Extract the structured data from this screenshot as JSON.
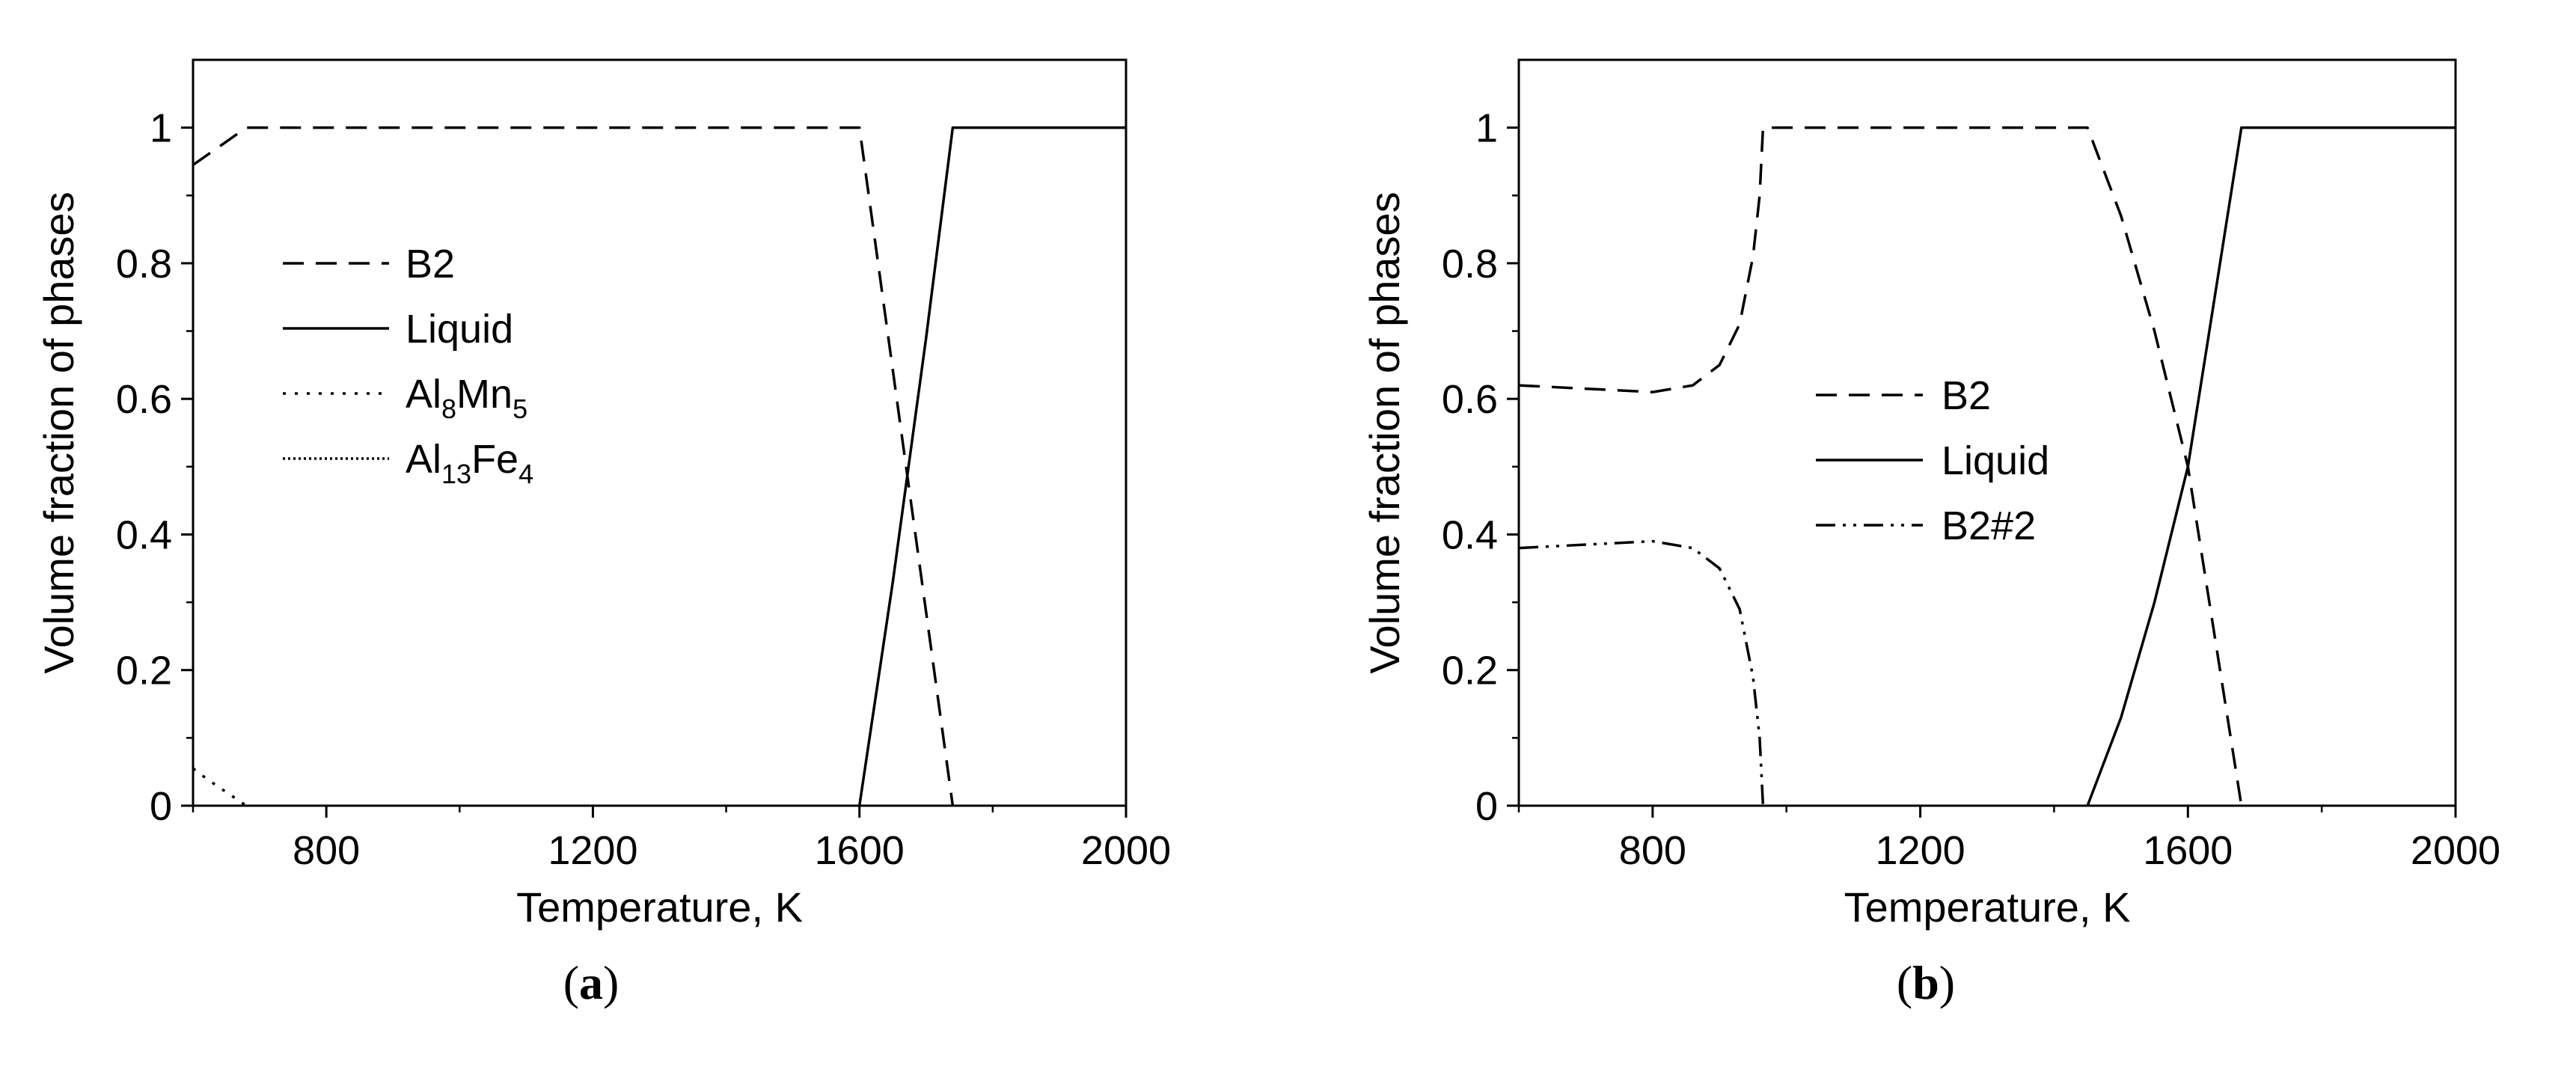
{
  "chart_data": [
    {
      "type": "line",
      "panel_label": "a",
      "xlabel": "Temperature, K",
      "ylabel": "Volume fraction of phases",
      "xlim": [
        600,
        2000
      ],
      "ylim": [
        0,
        1.1
      ],
      "xticks": [
        800,
        1200,
        1600,
        2000
      ],
      "yticks": [
        0,
        0.2,
        0.4,
        0.6,
        0.8,
        1
      ],
      "ytick_labels": [
        "0",
        "0.2",
        "0.4",
        "0.6",
        "0.8",
        "1"
      ],
      "grid": false,
      "legend_position": "center-left",
      "series": [
        {
          "name": "B2",
          "dash": "dashed",
          "x": [
            600,
            680,
            1600,
            1740
          ],
          "y": [
            0.945,
            1.0,
            1.0,
            0.0
          ]
        },
        {
          "name": "Liquid",
          "dash": "solid",
          "x": [
            1600,
            1650,
            1700,
            1740,
            2000
          ],
          "y": [
            0.0,
            0.33,
            0.69,
            1.0,
            1.0
          ]
        },
        {
          "name": "Al8Mn5",
          "name_parts": [
            [
              "Al",
              ""
            ],
            [
              "8",
              "sub"
            ],
            [
              "Mn",
              ""
            ],
            [
              "5",
              "sub"
            ]
          ],
          "dash": "dotted",
          "x": [
            600,
            620,
            650,
            680
          ],
          "y": [
            0.055,
            0.04,
            0.02,
            0.0
          ]
        },
        {
          "name": "Al13Fe4",
          "name_parts": [
            [
              "Al",
              ""
            ],
            [
              "13",
              "sub"
            ],
            [
              "Fe",
              ""
            ],
            [
              "4",
              "sub"
            ]
          ],
          "dash": "densely-dotted",
          "x": [],
          "y": []
        }
      ]
    },
    {
      "type": "line",
      "panel_label": "b",
      "xlabel": "Temperature, K",
      "ylabel": "Volume fraction of phases",
      "xlim": [
        600,
        2000
      ],
      "ylim": [
        0,
        1.1
      ],
      "xticks": [
        800,
        1200,
        1600,
        2000
      ],
      "yticks": [
        0,
        0.2,
        0.4,
        0.6,
        0.8,
        1
      ],
      "ytick_labels": [
        "0",
        "0.2",
        "0.4",
        "0.6",
        "0.8",
        "1"
      ],
      "grid": false,
      "legend_position": "center",
      "series": [
        {
          "name": "B2",
          "dash": "dashed",
          "x": [
            600,
            700,
            800,
            860,
            900,
            930,
            950,
            960,
            965,
            1450,
            1500,
            1550,
            1600,
            1640,
            1680
          ],
          "y": [
            0.62,
            0.615,
            0.61,
            0.62,
            0.65,
            0.71,
            0.81,
            0.9,
            1.0,
            1.0,
            0.87,
            0.7,
            0.5,
            0.25,
            0.0
          ]
        },
        {
          "name": "Liquid",
          "dash": "solid",
          "x": [
            1450,
            1500,
            1550,
            1600,
            1640,
            1680,
            2000
          ],
          "y": [
            0.0,
            0.13,
            0.3,
            0.5,
            0.75,
            1.0,
            1.0
          ]
        },
        {
          "name": "B2#2",
          "dash": "dash-dot-dot",
          "x": [
            600,
            700,
            800,
            860,
            900,
            930,
            950,
            960,
            965
          ],
          "y": [
            0.38,
            0.385,
            0.39,
            0.38,
            0.35,
            0.29,
            0.19,
            0.1,
            0.0
          ]
        }
      ]
    }
  ]
}
